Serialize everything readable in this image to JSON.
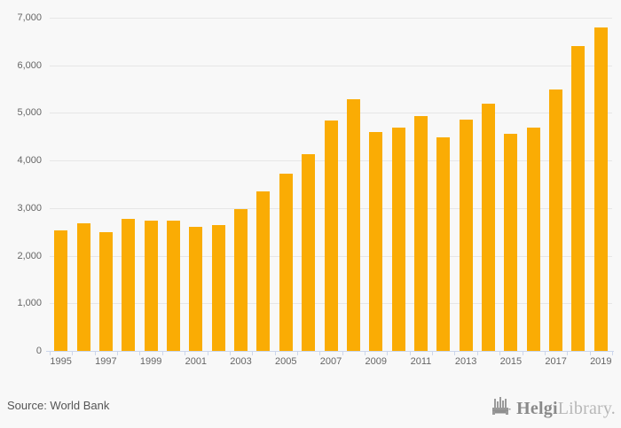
{
  "chart_data": {
    "type": "bar",
    "categories": [
      "1995",
      "1996",
      "1997",
      "1998",
      "1999",
      "2000",
      "2001",
      "2002",
      "2003",
      "2004",
      "2005",
      "2006",
      "2007",
      "2008",
      "2009",
      "2010",
      "2011",
      "2012",
      "2013",
      "2014",
      "2015",
      "2016",
      "2017",
      "2018",
      "2019"
    ],
    "values": [
      2530,
      2680,
      2500,
      2770,
      2730,
      2740,
      2600,
      2640,
      2980,
      3350,
      3730,
      4130,
      4840,
      5280,
      4600,
      4690,
      4940,
      4490,
      4860,
      5200,
      4560,
      4690,
      5490,
      6410,
      6800
    ],
    "title": "",
    "xlabel": "",
    "ylabel": "",
    "ylim": [
      0,
      7000
    ],
    "ytick_interval": 1000,
    "ytick_labels": [
      "0",
      "1,000",
      "2,000",
      "3,000",
      "4,000",
      "5,000",
      "6,000",
      "7,000"
    ],
    "xlabel_step": 2,
    "grid": true,
    "legend": false,
    "bar_color": "#faac04"
  },
  "colors": {
    "background": "#f8f8f8",
    "gridline": "#e6e6e6",
    "axis_line": "#ccd6eb",
    "tick_label": "#666666"
  },
  "footer": {
    "source_label": "Source: World Bank"
  },
  "branding": {
    "logo_icon": "helgi-bridge-bars-icon",
    "logo_text_primary": "Helgi",
    "logo_text_secondary": "Library",
    "logo_suffix": "."
  }
}
